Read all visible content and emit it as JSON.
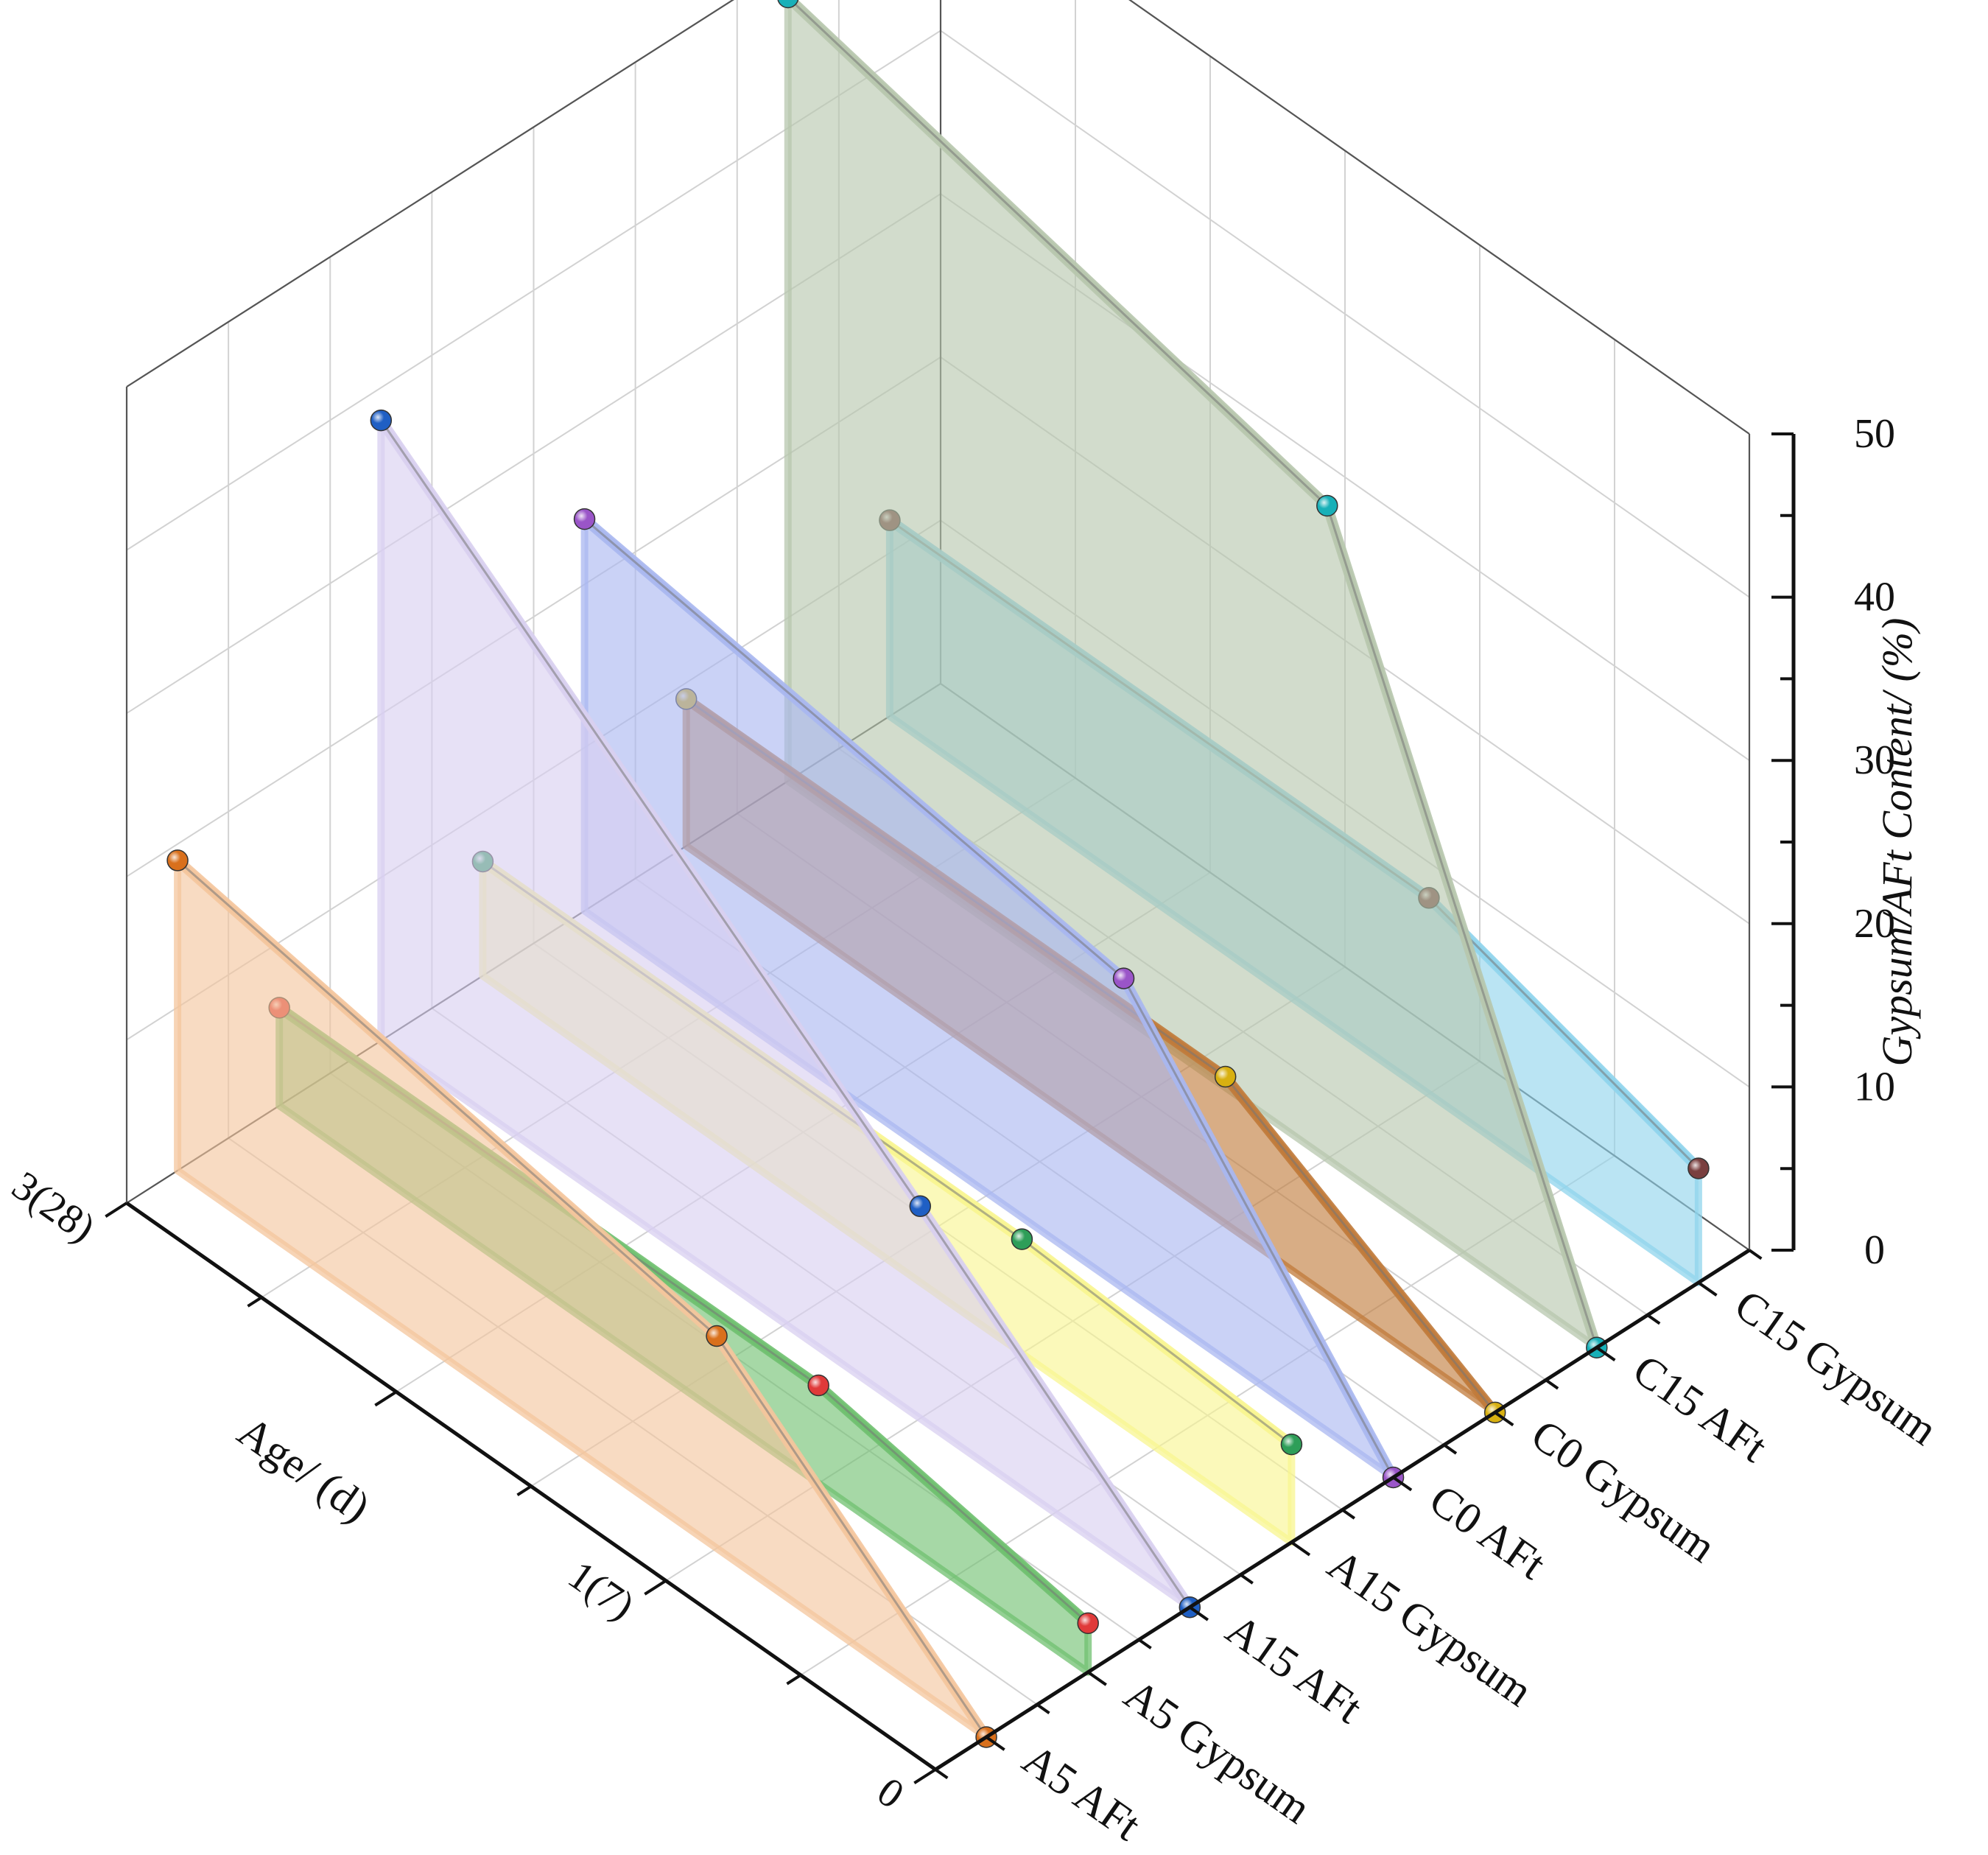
{
  "chart_data": {
    "type": "3d-area",
    "zlabel": "Gypsum/AFt Content/ (%)",
    "ylabel": "Age/ (d)",
    "zlim": [
      0,
      50
    ],
    "z_ticks": [
      "0",
      "10",
      "20",
      "30",
      "40",
      "50"
    ],
    "age_ticks": [
      "0",
      "1(7)",
      "3(28)"
    ],
    "ages": [
      0,
      1,
      3
    ],
    "grid": true,
    "series": [
      {
        "name": "A5 AFt",
        "values": [
          0,
          13,
          19
        ],
        "fill": "#f4c59c",
        "marker": "#d9701c"
      },
      {
        "name": "A5 Gypsum",
        "values": [
          3,
          6,
          6
        ],
        "fill": "#6fc06f",
        "marker": "#e03a3a"
      },
      {
        "name": "A15 AFt",
        "values": [
          0,
          13,
          38
        ],
        "fill": "#d8cff0",
        "marker": "#1f5fc4"
      },
      {
        "name": "A15 Gypsum",
        "values": [
          6,
          7,
          7
        ],
        "fill": "#f8f590",
        "marker": "#2e9e58"
      },
      {
        "name": "C0 AFt",
        "values": [
          0,
          19,
          24
        ],
        "fill": "#a9b7f0",
        "marker": "#9a55c8"
      },
      {
        "name": "C0 Gypsum",
        "values": [
          0,
          9,
          9
        ],
        "fill": "#c07a3a",
        "marker": "#d8b010"
      },
      {
        "name": "C15 AFt",
        "values": [
          0,
          40,
          48
        ],
        "fill": "#b7c7ad",
        "marker": "#18b0b8"
      },
      {
        "name": "C15 Gypsum",
        "values": [
          7,
          12,
          12
        ],
        "fill": "#8fd4ec",
        "marker": "#7a3f3f"
      }
    ]
  }
}
